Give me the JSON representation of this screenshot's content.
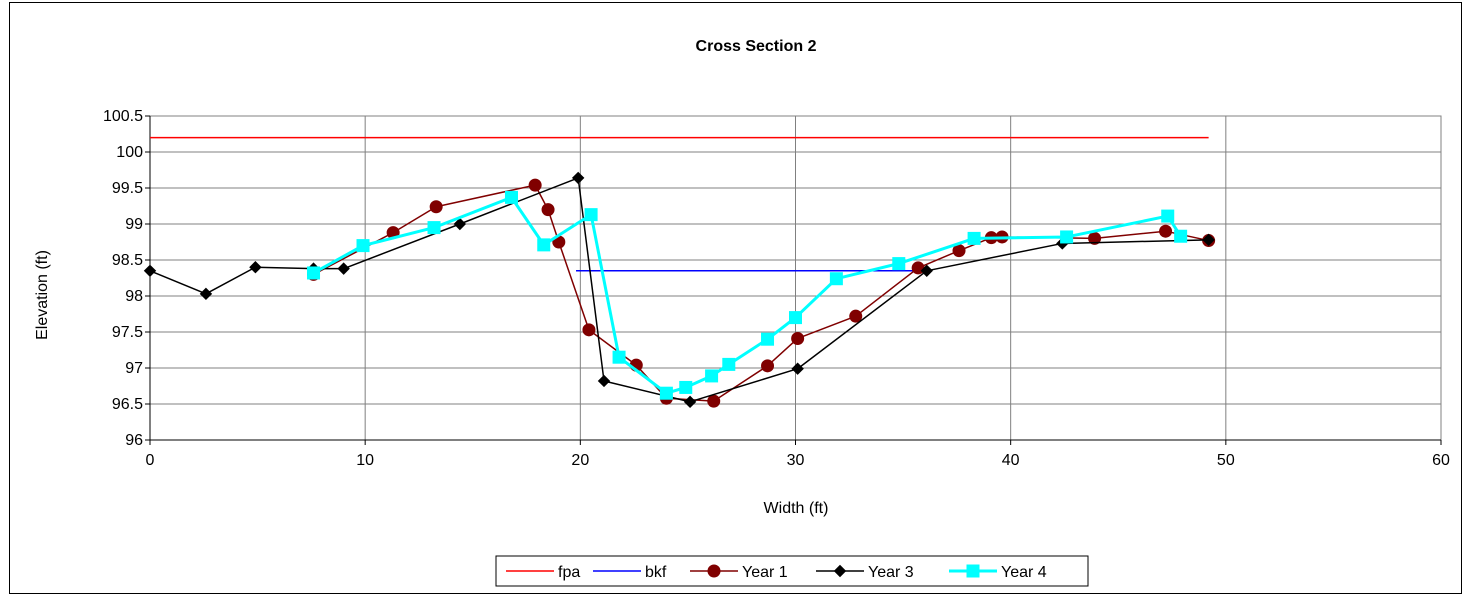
{
  "chart_data": {
    "type": "line",
    "title": "Cross Section 2",
    "xlabel": "Width (ft)",
    "ylabel": "Elevation (ft)",
    "xlim": [
      0,
      60
    ],
    "ylim": [
      96,
      100.5
    ],
    "xticks": [
      "0",
      "10",
      "20",
      "30",
      "40",
      "50",
      "60"
    ],
    "yticks": [
      "96",
      "96.5",
      "97",
      "97.5",
      "98",
      "98.5",
      "99",
      "99.5",
      "100",
      "100.5"
    ],
    "grid": true,
    "legend_position": "bottom",
    "series": [
      {
        "name": "fpa",
        "color": "#ff0000",
        "marker": "none",
        "line_width": 1.5,
        "x": [
          0,
          49.2
        ],
        "y": [
          100.2,
          100.2
        ]
      },
      {
        "name": "bkf",
        "color": "#0000ff",
        "marker": "none",
        "line_width": 1.5,
        "x": [
          19.8,
          36.0
        ],
        "y": [
          98.35,
          98.35
        ]
      },
      {
        "name": "Year 1",
        "color": "#800000",
        "marker": "circle",
        "line_width": 1.5,
        "x": [
          7.6,
          11.3,
          13.3,
          17.9,
          18.5,
          19.0,
          20.4,
          22.6,
          24.0,
          26.2,
          28.7,
          30.1,
          32.8,
          35.7,
          37.6,
          39.1,
          39.6,
          43.9,
          47.2,
          49.2
        ],
        "y": [
          98.3,
          98.88,
          99.24,
          99.54,
          99.2,
          98.75,
          97.53,
          97.04,
          96.58,
          96.54,
          97.03,
          97.41,
          97.72,
          98.39,
          98.63,
          98.81,
          98.82,
          98.8,
          98.9,
          98.77
        ]
      },
      {
        "name": "Year 3",
        "color": "#000000",
        "marker": "diamond",
        "line_width": 1.5,
        "x": [
          0,
          2.6,
          4.9,
          7.6,
          9.0,
          14.4,
          19.9,
          21.1,
          25.1,
          30.1,
          36.1,
          42.4,
          49.2
        ],
        "y": [
          98.35,
          98.03,
          98.4,
          98.38,
          98.38,
          99.0,
          99.64,
          96.82,
          96.53,
          96.99,
          98.35,
          98.73,
          98.78
        ]
      },
      {
        "name": "Year 4",
        "color": "#00ffff",
        "marker": "square",
        "line_width": 3,
        "x": [
          7.6,
          9.9,
          13.2,
          16.8,
          18.3,
          20.5,
          21.8,
          24.0,
          24.9,
          26.1,
          26.9,
          28.7,
          30.0,
          31.9,
          34.8,
          38.3,
          42.6,
          47.3,
          47.9
        ],
        "y": [
          98.32,
          98.7,
          98.95,
          99.37,
          98.71,
          99.13,
          97.15,
          96.65,
          96.73,
          96.89,
          97.05,
          97.4,
          97.7,
          98.24,
          98.45,
          98.8,
          98.82,
          99.11,
          98.83
        ]
      }
    ]
  }
}
